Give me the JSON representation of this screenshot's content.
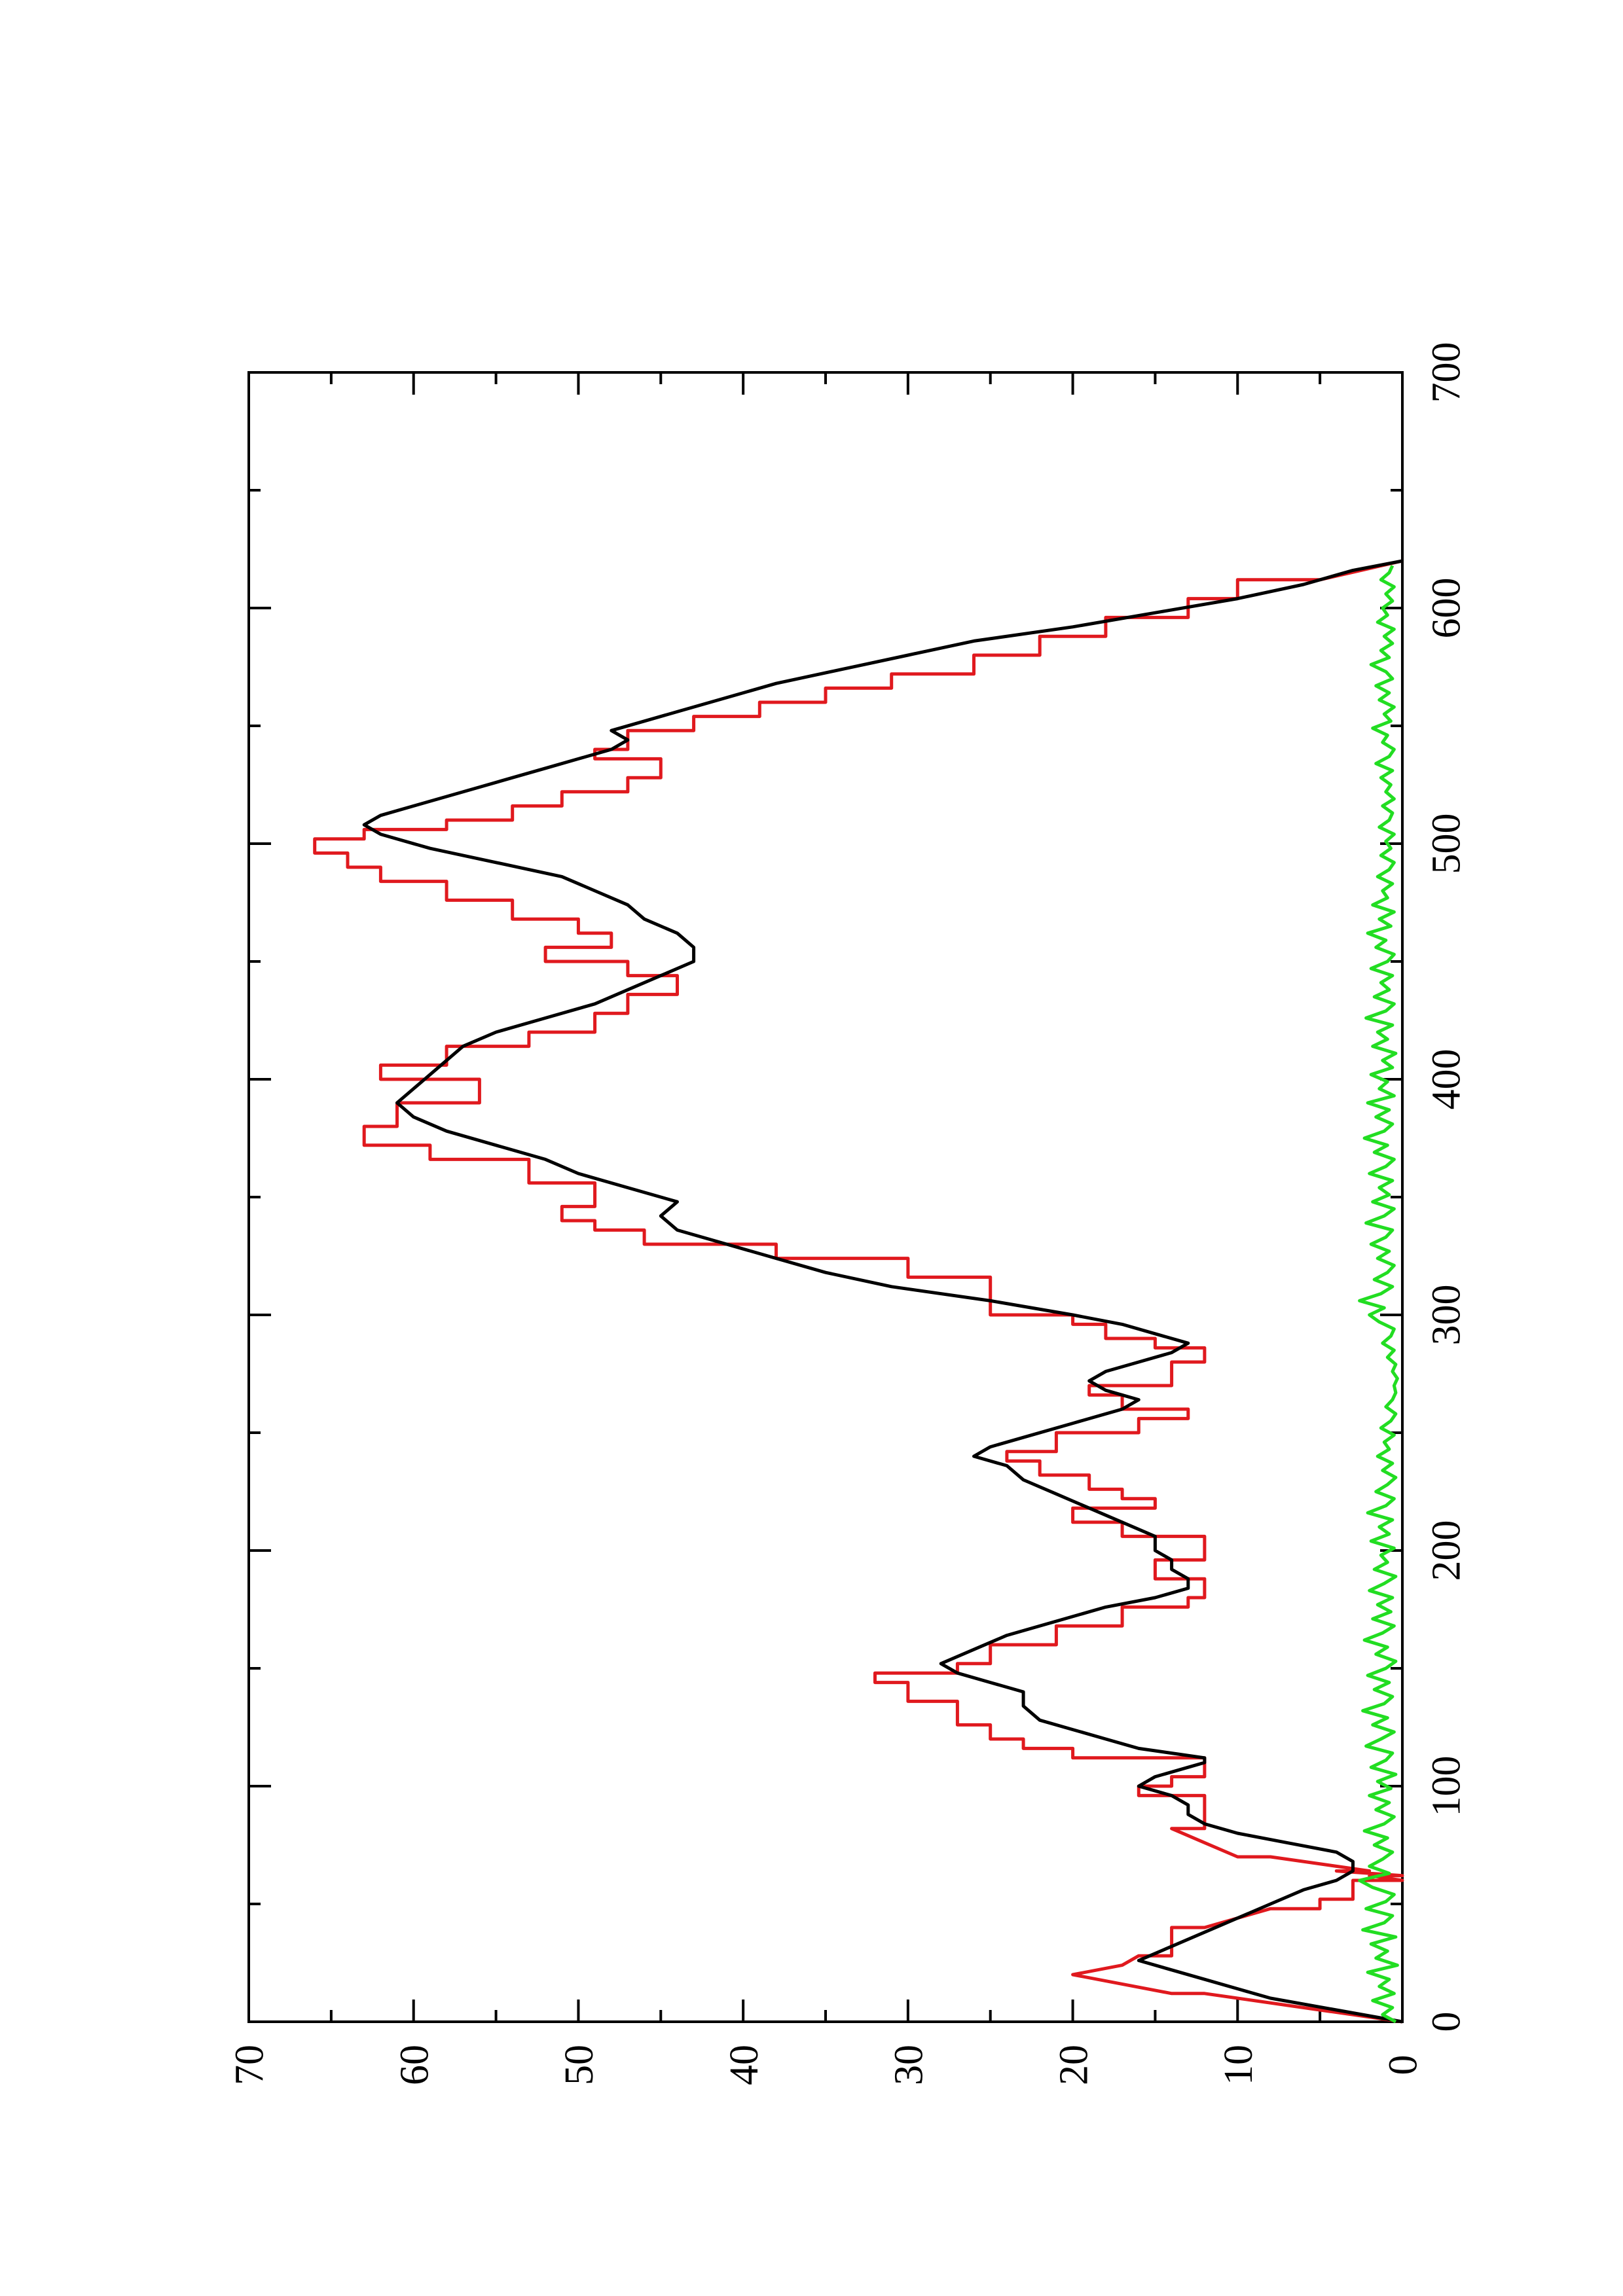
{
  "chart_data": {
    "type": "line",
    "title": "",
    "xlabel": "",
    "ylabel": "",
    "xlim": [
      0,
      700
    ],
    "ylim": [
      0,
      70
    ],
    "x_ticks": [
      "0",
      "100",
      "200",
      "300",
      "400",
      "500",
      "600",
      "700"
    ],
    "y_ticks": [
      "0",
      "10",
      "20",
      "30",
      "40",
      "50",
      "60",
      "70"
    ],
    "x_minor_step": 50,
    "y_minor_step": 5,
    "grid": false,
    "legend": "none",
    "orientation": "rotated-90-counterclockwise",
    "series": [
      {
        "color": "#e0191e",
        "x": [
          0,
          12,
          12,
          20,
          20,
          24,
          24,
          28,
          28,
          40,
          40,
          48,
          48,
          52,
          52,
          60,
          60,
          62,
          62,
          64,
          64,
          70,
          70,
          76,
          76,
          82,
          82,
          96,
          96,
          100,
          100,
          104,
          104,
          112,
          112,
          116,
          116,
          120,
          120,
          126,
          126,
          136,
          136,
          144,
          144,
          148,
          148,
          152,
          152,
          160,
          160,
          168,
          168,
          176,
          176,
          180,
          180,
          188,
          188,
          196,
          196,
          206,
          206,
          212,
          212,
          218,
          218,
          222,
          222,
          226,
          226,
          232,
          232,
          238,
          238,
          242,
          242,
          250,
          250,
          256,
          256,
          260,
          260,
          266,
          266,
          270,
          270,
          280,
          280,
          286,
          286,
          290,
          290,
          296,
          296,
          300,
          300,
          316,
          316,
          324,
          324,
          330,
          330,
          336,
          336,
          340,
          340,
          346,
          346,
          356,
          356,
          366,
          366,
          372,
          372,
          380,
          380,
          390,
          390,
          400,
          400,
          406,
          406,
          414,
          414,
          420,
          420,
          428,
          428,
          436,
          436,
          444,
          444,
          450,
          450,
          456,
          456,
          462,
          462,
          468,
          468,
          476,
          476,
          484,
          484,
          490,
          490,
          496,
          496,
          502,
          502,
          506,
          506,
          510,
          510,
          516,
          516,
          522,
          522,
          528,
          528,
          536,
          536,
          540,
          540,
          548,
          548,
          554,
          554,
          560,
          560,
          566,
          566,
          572,
          572,
          580,
          580,
          588,
          588,
          596,
          596,
          604,
          604,
          612,
          612,
          620
        ],
        "y": [
          0,
          12,
          14,
          20,
          20,
          17,
          17,
          16,
          14,
          14,
          12,
          8,
          5,
          5,
          3,
          3,
          0,
          2,
          0,
          4,
          2,
          8,
          10,
          12,
          12,
          14,
          12,
          12,
          16,
          16,
          14,
          14,
          12,
          12,
          20,
          20,
          23,
          23,
          25,
          25,
          27,
          27,
          30,
          30,
          32,
          32,
          27,
          27,
          25,
          25,
          21,
          21,
          17,
          17,
          13,
          13,
          12,
          12,
          15,
          15,
          12,
          12,
          17,
          17,
          20,
          20,
          15,
          15,
          17,
          17,
          19,
          19,
          22,
          22,
          24,
          24,
          21,
          21,
          16,
          16,
          13,
          13,
          17,
          17,
          19,
          19,
          14,
          14,
          12,
          12,
          15,
          15,
          18,
          18,
          20,
          20,
          25,
          25,
          30,
          30,
          38,
          38,
          46,
          46,
          49,
          49,
          51,
          51,
          49,
          49,
          53,
          53,
          59,
          59,
          63,
          63,
          61,
          61,
          56,
          56,
          62,
          62,
          58,
          58,
          53,
          53,
          49,
          49,
          47,
          47,
          44,
          44,
          47,
          47,
          52,
          52,
          48,
          48,
          50,
          50,
          54,
          54,
          58,
          58,
          62,
          62,
          64,
          64,
          66,
          66,
          63,
          63,
          58,
          58,
          54,
          54,
          51,
          51,
          47,
          47,
          45,
          45,
          49,
          49,
          47,
          47,
          43,
          43,
          39,
          39,
          35,
          35,
          31,
          31,
          26,
          26,
          22,
          22,
          18,
          18,
          13,
          13,
          10,
          10,
          5,
          0
        ]
      },
      {
        "color": "#000000",
        "x": [
          0,
          5,
          10,
          14,
          18,
          22,
          26,
          32,
          38,
          44,
          50,
          56,
          60,
          64,
          68,
          72,
          76,
          80,
          84,
          88,
          92,
          96,
          100,
          104,
          108,
          110,
          112,
          116,
          120,
          124,
          128,
          134,
          140,
          144,
          148,
          152,
          158,
          164,
          170,
          176,
          180,
          184,
          188,
          192,
          196,
          200,
          206,
          212,
          218,
          224,
          230,
          236,
          240,
          244,
          248,
          254,
          260,
          264,
          268,
          272,
          276,
          280,
          284,
          288,
          292,
          296,
          300,
          306,
          312,
          318,
          324,
          330,
          336,
          342,
          348,
          354,
          360,
          366,
          372,
          378,
          384,
          390,
          396,
          402,
          408,
          414,
          420,
          426,
          432,
          438,
          444,
          450,
          456,
          462,
          468,
          474,
          480,
          486,
          492,
          498,
          504,
          508,
          512,
          516,
          520,
          524,
          528,
          532,
          536,
          540,
          544,
          548,
          552,
          556,
          560,
          564,
          568,
          574,
          580,
          586,
          592,
          598,
          604,
          610,
          616,
          620
        ],
        "y": [
          0,
          4,
          8,
          10,
          12,
          14,
          16,
          14,
          12,
          10,
          8,
          6,
          4,
          3,
          3,
          4,
          7,
          10,
          12,
          13,
          13,
          14,
          16,
          15,
          13,
          12,
          12,
          16,
          18,
          20,
          22,
          23,
          23,
          25,
          27,
          28,
          26,
          24,
          21,
          18,
          15,
          13,
          13,
          14,
          14,
          15,
          15,
          17,
          19,
          21,
          23,
          24,
          26,
          25,
          23,
          20,
          17,
          16,
          18,
          19,
          18,
          16,
          14,
          13,
          15,
          17,
          20,
          25,
          31,
          35,
          38,
          41,
          44,
          45,
          44,
          47,
          50,
          52,
          55,
          58,
          60,
          61,
          60,
          59,
          58,
          57,
          55,
          52,
          49,
          47,
          45,
          43,
          43,
          44,
          46,
          47,
          49,
          51,
          55,
          59,
          62,
          63,
          62,
          60,
          58,
          56,
          54,
          52,
          50,
          48,
          47,
          48,
          46,
          44,
          42,
          40,
          38,
          34,
          30,
          26,
          20,
          15,
          10,
          6,
          3,
          0
        ]
      },
      {
        "color": "#22dd22",
        "x": [
          0,
          3,
          6,
          9,
          12,
          15,
          18,
          21,
          24,
          27,
          30,
          33,
          36,
          39,
          42,
          45,
          48,
          51,
          54,
          57,
          60,
          63,
          66,
          69,
          72,
          75,
          78,
          81,
          84,
          87,
          90,
          93,
          96,
          99,
          102,
          105,
          108,
          111,
          114,
          117,
          120,
          123,
          126,
          129,
          132,
          135,
          138,
          141,
          144,
          147,
          150,
          153,
          156,
          159,
          162,
          165,
          168,
          171,
          174,
          177,
          180,
          183,
          186,
          189,
          192,
          195,
          198,
          201,
          204,
          207,
          210,
          213,
          216,
          219,
          222,
          225,
          228,
          231,
          234,
          237,
          240,
          243,
          246,
          249,
          252,
          255,
          258,
          261,
          264,
          267,
          270,
          273,
          276,
          279,
          282,
          285,
          288,
          291,
          294,
          297,
          300,
          303,
          306,
          309,
          312,
          315,
          318,
          321,
          324,
          327,
          330,
          333,
          336,
          339,
          342,
          345,
          348,
          351,
          354,
          357,
          360,
          363,
          366,
          369,
          372,
          375,
          378,
          381,
          384,
          387,
          390,
          393,
          396,
          399,
          402,
          405,
          408,
          411,
          414,
          417,
          420,
          423,
          426,
          429,
          432,
          435,
          438,
          441,
          444,
          447,
          450,
          453,
          456,
          459,
          462,
          465,
          468,
          471,
          474,
          477,
          480,
          483,
          486,
          489,
          492,
          495,
          498,
          501,
          504,
          507,
          510,
          513,
          516,
          519,
          522,
          525,
          528,
          531,
          534,
          537,
          540,
          543,
          546,
          549,
          552,
          555,
          558,
          561,
          564,
          567,
          570,
          573,
          576,
          579,
          582,
          585,
          588,
          591,
          594,
          597,
          600,
          603,
          606,
          609,
          612,
          615,
          618
        ],
        "y": [
          0.4,
          1.2,
          0.6,
          1.8,
          0.5,
          1.4,
          0.8,
          2.1,
          0.3,
          1.6,
          0.9,
          1.9,
          0.4,
          2.4,
          1.1,
          0.6,
          2.2,
          1.0,
          0.5,
          1.8,
          2.6,
          0.8,
          2.0,
          1.2,
          0.6,
          1.7,
          0.9,
          2.3,
          1.1,
          0.5,
          1.6,
          0.8,
          2.0,
          0.7,
          1.5,
          0.4,
          1.9,
          1.0,
          0.6,
          2.2,
          1.3,
          0.5,
          1.8,
          0.9,
          2.4,
          1.1,
          0.6,
          1.7,
          0.8,
          2.1,
          1.0,
          0.4,
          1.6,
          0.9,
          2.3,
          1.2,
          0.5,
          1.8,
          0.7,
          1.5,
          0.6,
          2.0,
          1.1,
          0.4,
          1.7,
          0.9,
          1.3,
          0.5,
          1.9,
          0.8,
          1.4,
          0.6,
          2.1,
          1.0,
          0.5,
          1.6,
          0.9,
          0.4,
          1.2,
          0.6,
          1.5,
          0.8,
          1.1,
          0.5,
          1.3,
          0.7,
          0.4,
          1.0,
          0.6,
          0.4,
          0.5,
          0.3,
          0.6,
          0.4,
          0.9,
          0.5,
          1.2,
          0.7,
          0.5,
          1.4,
          2.0,
          1.1,
          2.6,
          1.3,
          0.6,
          1.7,
          0.9,
          0.5,
          1.5,
          0.8,
          1.9,
          1.0,
          0.6,
          2.2,
          1.1,
          0.5,
          1.8,
          0.8,
          1.4,
          0.6,
          2.0,
          1.0,
          0.5,
          1.7,
          0.9,
          2.3,
          1.1,
          0.6,
          1.6,
          0.8,
          2.1,
          0.5,
          1.4,
          0.9,
          1.9,
          0.6,
          1.2,
          0.4,
          1.8,
          0.9,
          1.5,
          0.6,
          2.2,
          1.0,
          0.5,
          1.7,
          0.8,
          1.3,
          0.6,
          1.9,
          0.9,
          0.5,
          1.6,
          1.0,
          2.1,
          0.7,
          1.4,
          0.5,
          1.8,
          0.9,
          1.2,
          0.6,
          1.5,
          0.8,
          0.5,
          1.3,
          0.7,
          1.0,
          0.5,
          1.4,
          0.8,
          0.6,
          1.2,
          0.5,
          1.0,
          0.7,
          1.3,
          0.6,
          1.6,
          0.8,
          0.5,
          1.2,
          0.9,
          1.8,
          0.7,
          1.1,
          0.5,
          1.4,
          0.8,
          1.6,
          0.6,
          1.0,
          1.9,
          0.8,
          1.3,
          0.6,
          1.1,
          0.5,
          1.5,
          0.9,
          1.2,
          0.6,
          1.0,
          0.5,
          1.3,
          0.8,
          0.6
        ]
      }
    ]
  }
}
